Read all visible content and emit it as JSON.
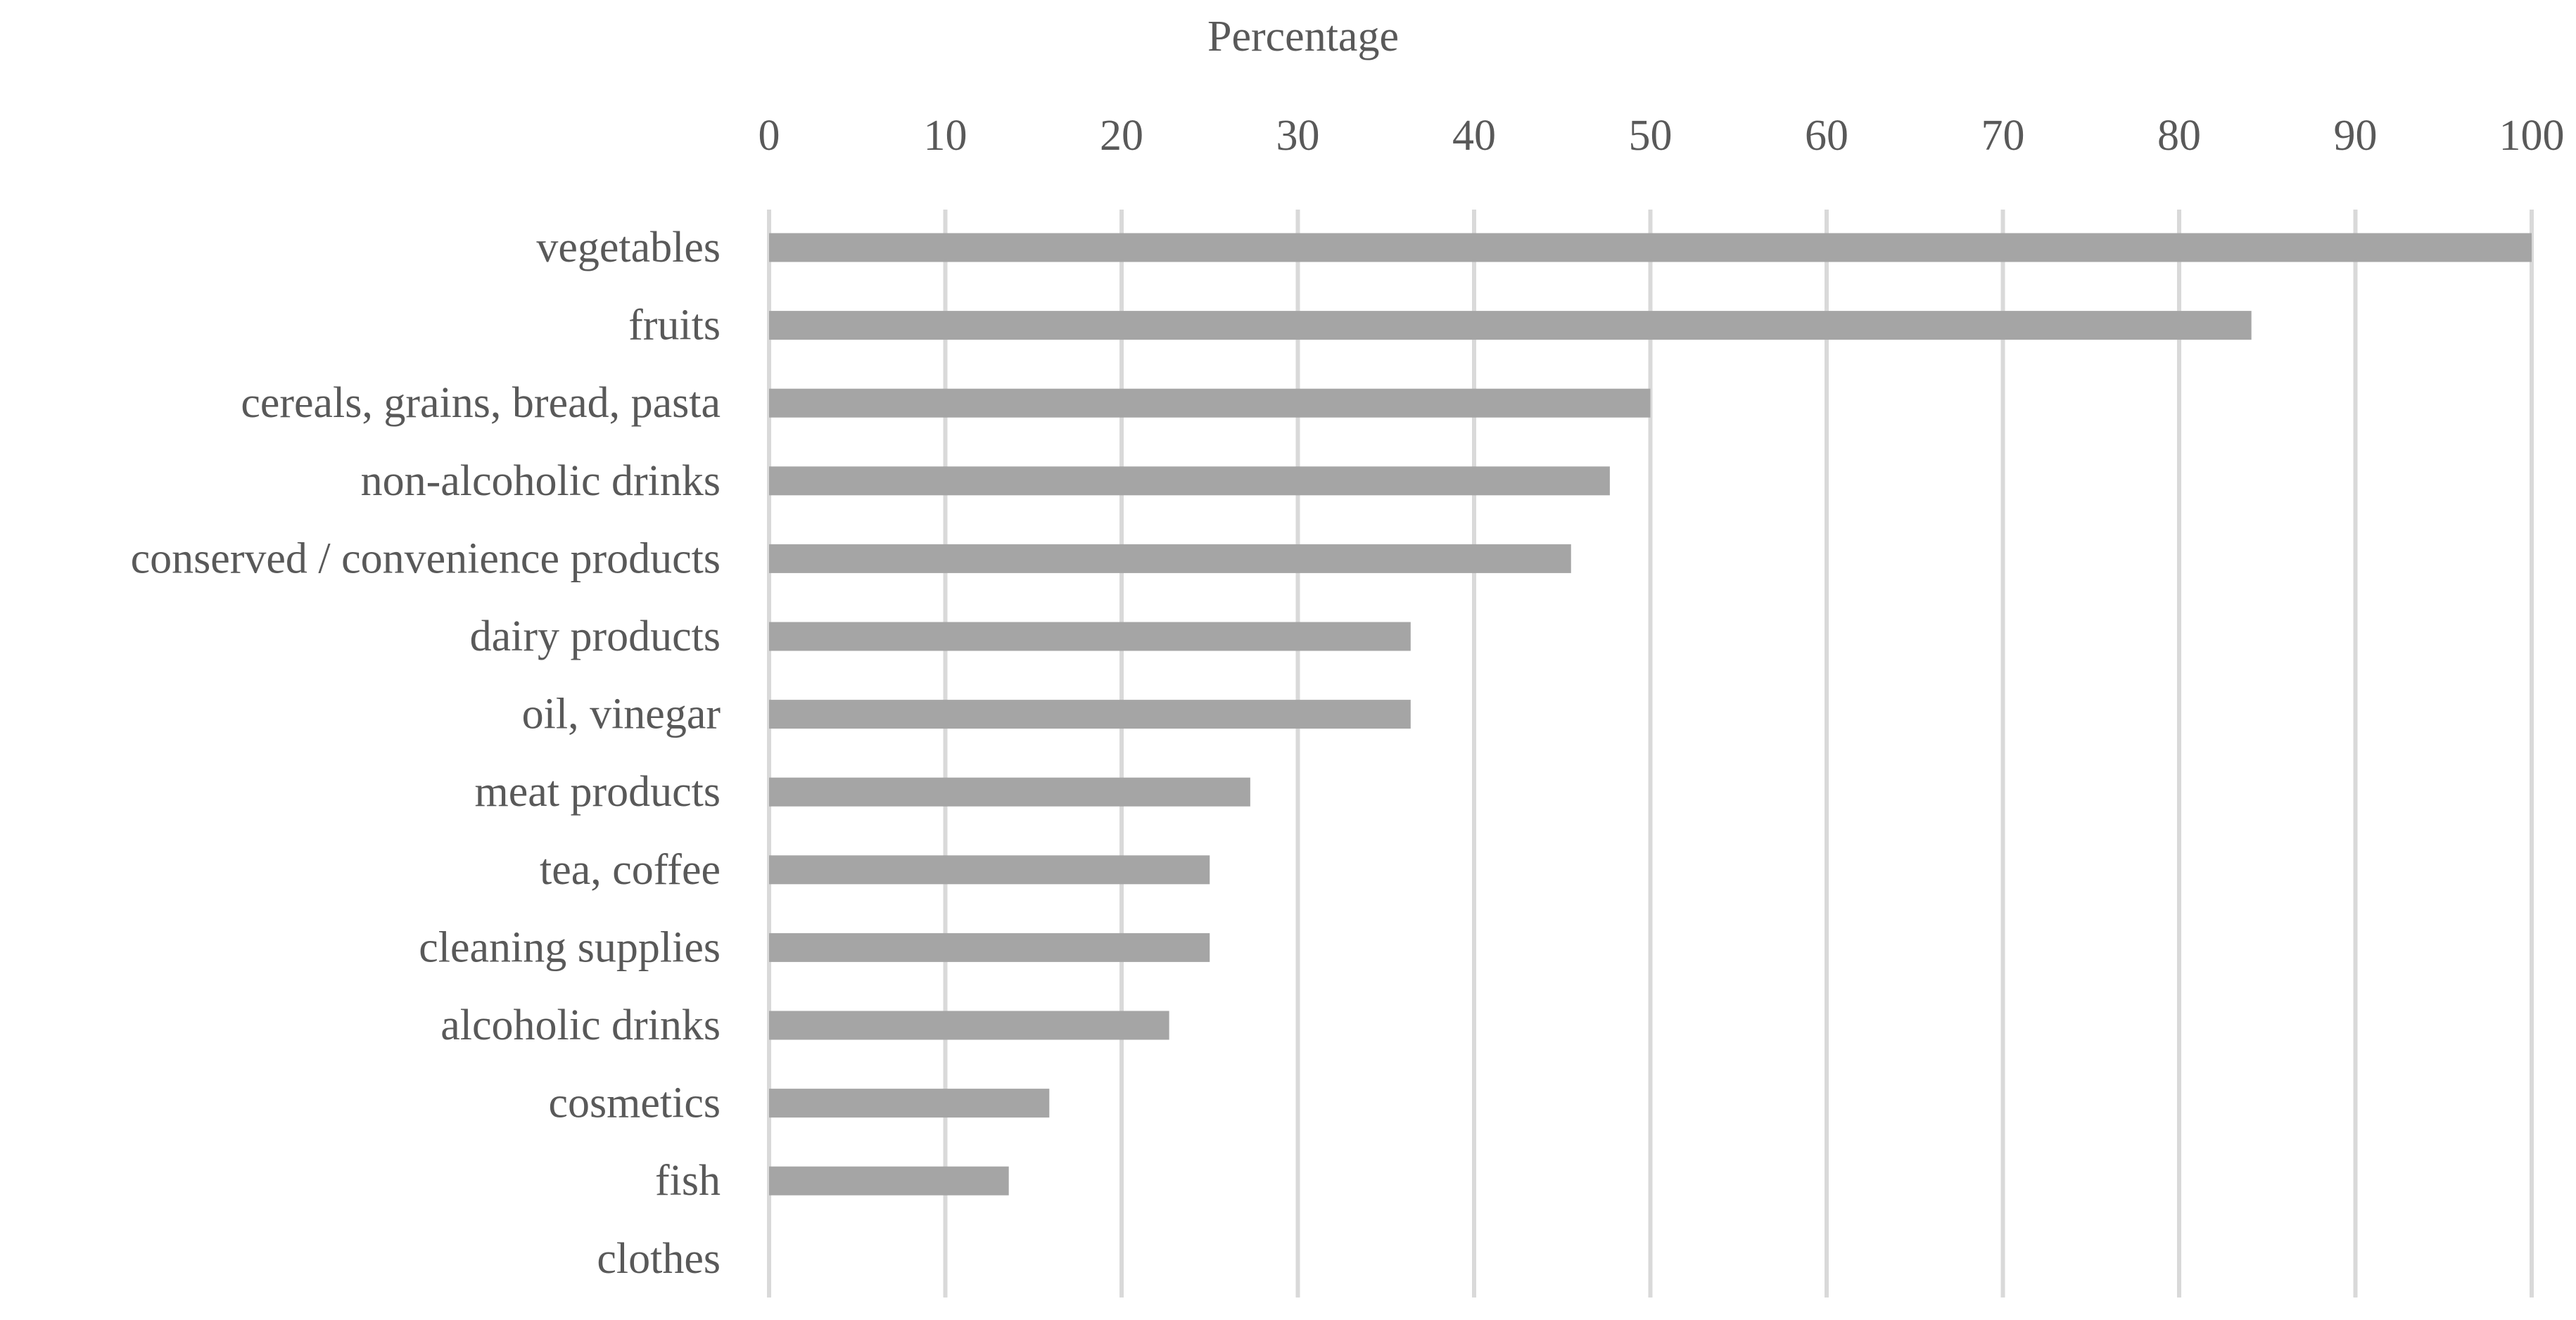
{
  "chart_data": {
    "type": "bar",
    "orientation": "horizontal",
    "xlabel": "Percentage",
    "xlabel_position": "top",
    "xlim": [
      0,
      100
    ],
    "xticks": [
      0,
      10,
      20,
      30,
      40,
      50,
      60,
      70,
      80,
      90,
      100
    ],
    "grid": true,
    "categories": [
      "vegetables",
      "fruits",
      "cereals, grains, bread, pasta",
      "non-alcoholic drinks",
      "conserved / convenience products",
      "dairy products",
      "oil, vinegar",
      "meat products",
      "tea, coffee",
      "cleaning supplies",
      "alcoholic drinks",
      "cosmetics",
      "fish",
      "clothes"
    ],
    "values": [
      100,
      84.1,
      50,
      47.7,
      45.5,
      36.4,
      36.4,
      27.3,
      25,
      25,
      22.7,
      15.9,
      13.6,
      0
    ],
    "colors": {
      "bar": "#a5a5a5",
      "grid": "#d9d9d9",
      "text": "#595959"
    }
  }
}
